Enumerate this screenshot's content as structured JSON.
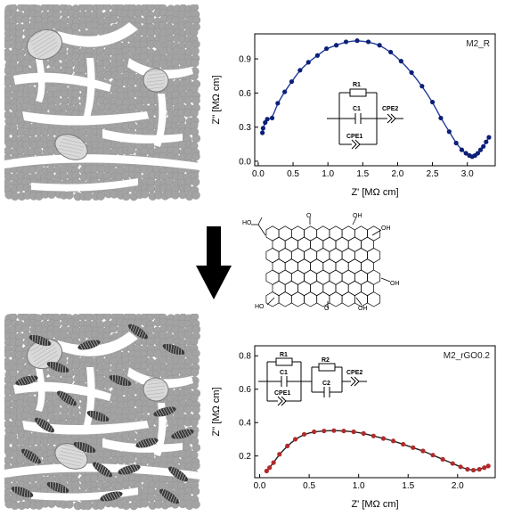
{
  "colors": {
    "particle": "#a3a3a3",
    "particle_edge": "#8d8d8d",
    "pore": "#ffffff",
    "fill_series_top": "#0a1f78",
    "fit_top": "#233a9a",
    "fill_series_bottom": "#b22a2a",
    "fit_bottom": "#202020",
    "rgo": "#3a3a3a",
    "crystal": "#d9d9d9"
  },
  "chart_data": [
    {
      "type": "scatter",
      "label": "M2_R",
      "xlabel": "Z' [MΩ cm]",
      "ylabel": "Z'' [MΩ cm]",
      "xlim": [
        -0.05,
        3.4
      ],
      "ylim": [
        -0.04,
        1.12
      ],
      "xticks": [
        "0.0",
        "0.5",
        "1.0",
        "1.5",
        "2.0",
        "2.5",
        "3.0"
      ],
      "xtick_values": [
        0,
        0.5,
        1.0,
        1.5,
        2.0,
        2.5,
        3.0
      ],
      "yticks": [
        "0.0",
        "0.3",
        "0.6",
        "0.9"
      ],
      "ytick_values": [
        0,
        0.3,
        0.6,
        0.9
      ],
      "circuit": {
        "r": "R1",
        "c": "C1",
        "cpe_parallel": "CPE1",
        "cpe_series": "CPE2"
      },
      "points": [
        [
          0.06,
          0.25
        ],
        [
          0.07,
          0.29
        ],
        [
          0.1,
          0.34
        ],
        [
          0.13,
          0.37
        ],
        [
          0.2,
          0.38
        ],
        [
          0.28,
          0.51
        ],
        [
          0.38,
          0.61
        ],
        [
          0.48,
          0.7
        ],
        [
          0.6,
          0.8
        ],
        [
          0.72,
          0.87
        ],
        [
          0.85,
          0.93
        ],
        [
          0.98,
          0.99
        ],
        [
          1.12,
          1.02
        ],
        [
          1.26,
          1.05
        ],
        [
          1.42,
          1.06
        ],
        [
          1.58,
          1.05
        ],
        [
          1.74,
          1.02
        ],
        [
          1.9,
          0.96
        ],
        [
          2.05,
          0.88
        ],
        [
          2.2,
          0.78
        ],
        [
          2.35,
          0.66
        ],
        [
          2.5,
          0.52
        ],
        [
          2.62,
          0.38
        ],
        [
          2.74,
          0.26
        ],
        [
          2.84,
          0.16
        ],
        [
          2.92,
          0.1
        ],
        [
          2.98,
          0.07
        ],
        [
          3.03,
          0.05
        ],
        [
          3.07,
          0.04
        ],
        [
          3.11,
          0.05
        ],
        [
          3.15,
          0.07
        ],
        [
          3.19,
          0.1
        ],
        [
          3.23,
          0.13
        ],
        [
          3.27,
          0.17
        ],
        [
          3.31,
          0.21
        ]
      ],
      "fit": {
        "x0": 0.05,
        "x1": 3.05,
        "spur_end": [
          3.33,
          0.22
        ]
      }
    },
    {
      "type": "scatter",
      "label": "M2_rGO0.2",
      "xlabel": "Z' [MΩ cm]",
      "ylabel": "Z'' [MΩ cm]",
      "xlim": [
        -0.05,
        2.38
      ],
      "ylim": [
        0.07,
        0.86
      ],
      "xticks": [
        "0.0",
        "0.5",
        "1.0",
        "1.5",
        "2.0"
      ],
      "xtick_values": [
        0,
        0.5,
        1.0,
        1.5,
        2.0
      ],
      "yticks": [
        "0.2",
        "0.4",
        "0.6",
        "0.8"
      ],
      "ytick_values": [
        0.2,
        0.4,
        0.6,
        0.8
      ],
      "circuit": {
        "r1": "R1",
        "c1": "C1",
        "cpe_parallel": "CPE1",
        "r2": "R2",
        "c2": "C2",
        "cpe_series": "CPE2"
      },
      "points": [
        [
          0.07,
          0.11
        ],
        [
          0.1,
          0.13
        ],
        [
          0.14,
          0.16
        ],
        [
          0.2,
          0.21
        ],
        [
          0.28,
          0.26
        ],
        [
          0.36,
          0.3
        ],
        [
          0.45,
          0.33
        ],
        [
          0.55,
          0.345
        ],
        [
          0.65,
          0.35
        ],
        [
          0.75,
          0.352
        ],
        [
          0.85,
          0.35
        ],
        [
          0.95,
          0.345
        ],
        [
          1.05,
          0.335
        ],
        [
          1.15,
          0.32
        ],
        [
          1.25,
          0.305
        ],
        [
          1.35,
          0.29
        ],
        [
          1.45,
          0.27
        ],
        [
          1.55,
          0.25
        ],
        [
          1.65,
          0.23
        ],
        [
          1.75,
          0.205
        ],
        [
          1.85,
          0.18
        ],
        [
          1.95,
          0.155
        ],
        [
          2.03,
          0.135
        ],
        [
          2.1,
          0.12
        ],
        [
          2.16,
          0.115
        ],
        [
          2.22,
          0.12
        ],
        [
          2.27,
          0.13
        ],
        [
          2.31,
          0.14
        ]
      ]
    }
  ],
  "molecule": {
    "labels": [
      "HO",
      "O",
      "OH",
      "OH",
      "OH",
      "HO",
      "O",
      "OH"
    ]
  }
}
